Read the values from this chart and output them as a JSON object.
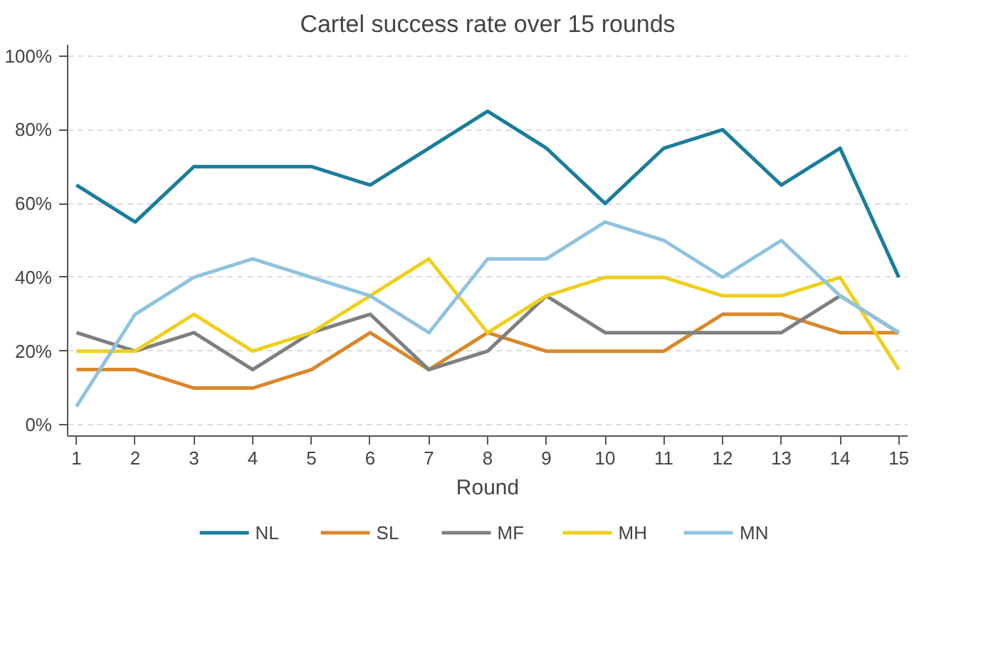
{
  "chart_data": {
    "type": "line",
    "title": "Cartel success rate over 15 rounds",
    "xlabel": "Round",
    "x": [
      1,
      2,
      3,
      4,
      5,
      6,
      7,
      8,
      9,
      10,
      11,
      12,
      13,
      14,
      15
    ],
    "xlim": [
      0.85,
      15.15
    ],
    "xticks": [
      1,
      2,
      3,
      4,
      5,
      6,
      7,
      8,
      9,
      10,
      11,
      12,
      13,
      14,
      15
    ],
    "ylim": [
      -3,
      103
    ],
    "yticks": [
      {
        "value": 0,
        "label": "0%"
      },
      {
        "value": 20,
        "label": "20%"
      },
      {
        "value": 40,
        "label": "40%"
      },
      {
        "value": 60,
        "label": "60%"
      },
      {
        "value": 80,
        "label": "80%"
      },
      {
        "value": 100,
        "label": "100%"
      }
    ],
    "grid": "y",
    "legend": "bottom",
    "line_style": "solid",
    "series": [
      {
        "name": "NL",
        "color": "#1a7d9c",
        "values": [
          65,
          55,
          70,
          70,
          70,
          65,
          75,
          85,
          75,
          60,
          75,
          80,
          65,
          75,
          40
        ]
      },
      {
        "name": "SL",
        "color": "#d9882a",
        "values": [
          15,
          15,
          10,
          10,
          15,
          25,
          15,
          25,
          20,
          20,
          20,
          30,
          30,
          25,
          25
        ]
      },
      {
        "name": "MF",
        "color": "#7f7f7f",
        "values": [
          25,
          20,
          25,
          15,
          25,
          30,
          15,
          20,
          35,
          25,
          25,
          25,
          25,
          35,
          25
        ]
      },
      {
        "name": "MH",
        "color": "#f0cf1c",
        "values": [
          20,
          20,
          30,
          20,
          25,
          35,
          45,
          25,
          35,
          40,
          40,
          35,
          35,
          40,
          15
        ]
      },
      {
        "name": "MN",
        "color": "#8fc3e0",
        "values": [
          5,
          30,
          40,
          45,
          40,
          35,
          25,
          45,
          45,
          55,
          50,
          40,
          50,
          35,
          25
        ]
      }
    ]
  }
}
